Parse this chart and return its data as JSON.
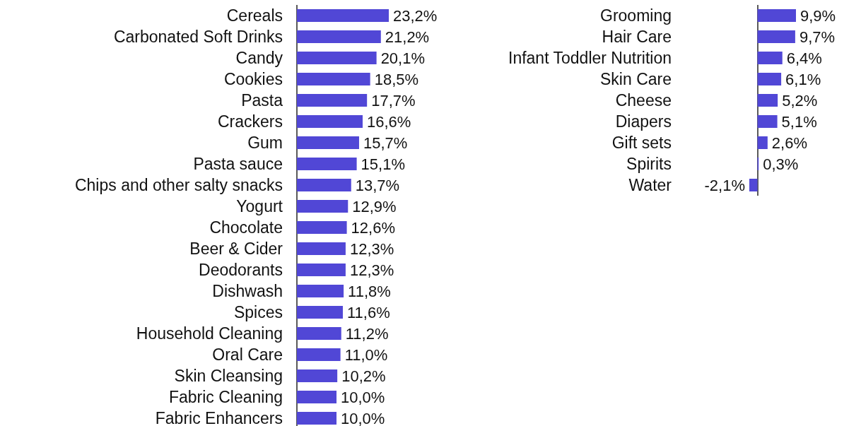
{
  "chart_data": [
    {
      "type": "bar",
      "orientation": "horizontal",
      "color": "#5147d6",
      "categories": [
        "Cereals",
        "Carbonated Soft Drinks",
        "Candy",
        "Cookies",
        "Pasta",
        "Crackers",
        "Gum",
        "Pasta sauce",
        "Chips and other salty snacks",
        "Yogurt",
        "Chocolate",
        "Beer & Cider",
        "Deodorants",
        "Dishwash",
        "Spices",
        "Household Cleaning",
        "Oral Care",
        "Skin Cleansing",
        "Fabric Cleaning",
        "Fabric Enhancers"
      ],
      "values": [
        23.2,
        21.2,
        20.1,
        18.5,
        17.7,
        16.6,
        15.7,
        15.1,
        13.7,
        12.9,
        12.6,
        12.3,
        12.3,
        11.8,
        11.6,
        11.2,
        11.0,
        10.2,
        10.0,
        10.0
      ],
      "value_labels": [
        "23,2%",
        "21,2%",
        "20,1%",
        "18,5%",
        "17,7%",
        "16,6%",
        "15,7%",
        "15,1%",
        "13,7%",
        "12,9%",
        "12,6%",
        "12,3%",
        "12,3%",
        "11,8%",
        "11,6%",
        "11,2%",
        "11,0%",
        "10,2%",
        "10,0%",
        "10,0%"
      ]
    },
    {
      "type": "bar",
      "orientation": "horizontal",
      "color": "#5147d6",
      "categories": [
        "Grooming",
        "Hair Care",
        "Infant Toddler Nutrition",
        "Skin Care",
        "Cheese",
        "Diapers",
        "Gift sets",
        "Spirits",
        "Water"
      ],
      "values": [
        9.9,
        9.7,
        6.4,
        6.1,
        5.2,
        5.1,
        2.6,
        0.3,
        -2.1
      ],
      "value_labels": [
        "9,9%",
        "9,7%",
        "6,4%",
        "6,1%",
        "5,2%",
        "5,1%",
        "2,6%",
        "0,3%",
        "-2,1%"
      ]
    }
  ]
}
